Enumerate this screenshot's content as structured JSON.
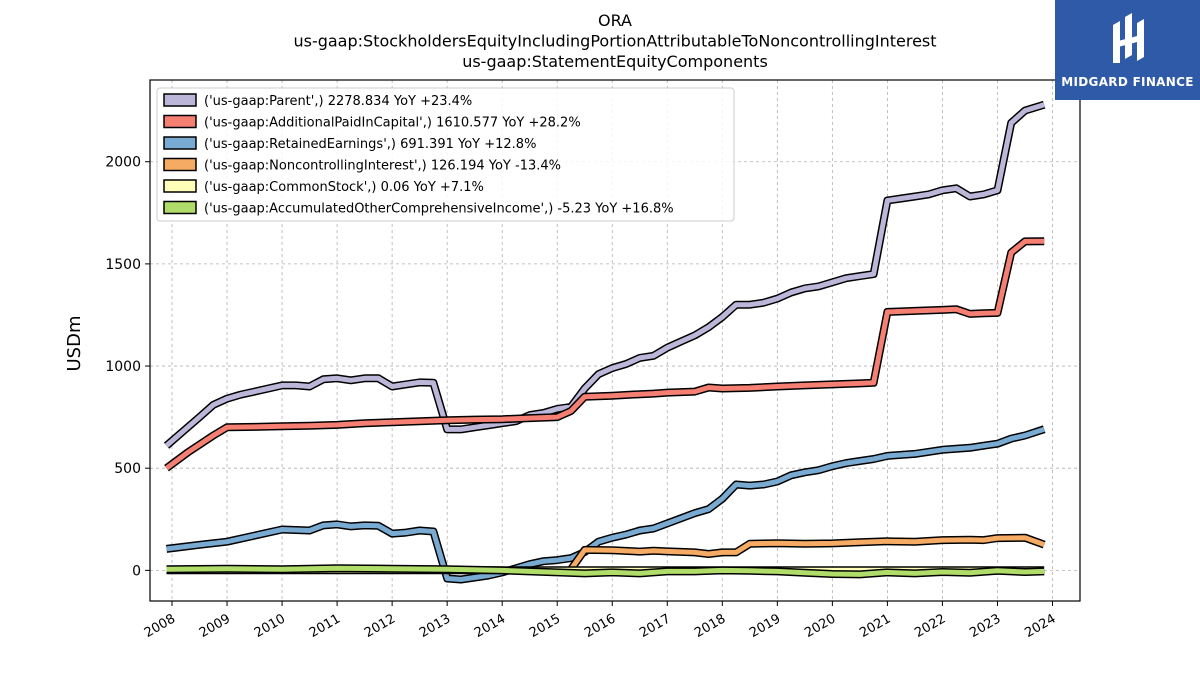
{
  "chart_data": {
    "type": "line",
    "title_lines": [
      "ORA",
      "us-gaap:StockholdersEquityIncludingPortionAttributableToNoncontrollingInterest",
      "us-gaap:StatementEquityComponents"
    ],
    "ylabel": "USDm",
    "xlabel": "",
    "xlim": [
      2007.6,
      2024.5
    ],
    "ylim": [
      -150,
      2400
    ],
    "x_ticks": [
      "2008",
      "2009",
      "2010",
      "2011",
      "2012",
      "2013",
      "2014",
      "2015",
      "2016",
      "2017",
      "2018",
      "2019",
      "2020",
      "2021",
      "2022",
      "2023",
      "2024"
    ],
    "y_ticks": [
      0,
      500,
      1000,
      1500,
      2000
    ],
    "grid": true,
    "legend_position": "top-left",
    "series": [
      {
        "name": "('us-gaap:Parent',) 2278.834 YoY +23.4%",
        "color": "#bcb7d9",
        "points": [
          [
            2007.9,
            610
          ],
          [
            2008.2,
            680
          ],
          [
            2008.5,
            750
          ],
          [
            2008.75,
            810
          ],
          [
            2009.0,
            840
          ],
          [
            2009.25,
            860
          ],
          [
            2009.5,
            875
          ],
          [
            2009.75,
            890
          ],
          [
            2010.0,
            905
          ],
          [
            2010.25,
            905
          ],
          [
            2010.5,
            900
          ],
          [
            2010.75,
            935
          ],
          [
            2011.0,
            940
          ],
          [
            2011.25,
            930
          ],
          [
            2011.5,
            940
          ],
          [
            2011.75,
            940
          ],
          [
            2012.0,
            900
          ],
          [
            2012.25,
            910
          ],
          [
            2012.5,
            920
          ],
          [
            2012.75,
            918
          ],
          [
            2013.0,
            690
          ],
          [
            2013.25,
            690
          ],
          [
            2013.5,
            700
          ],
          [
            2013.75,
            710
          ],
          [
            2014.0,
            720
          ],
          [
            2014.25,
            730
          ],
          [
            2014.5,
            760
          ],
          [
            2014.75,
            770
          ],
          [
            2015.0,
            790
          ],
          [
            2015.25,
            800
          ],
          [
            2015.5,
            890
          ],
          [
            2015.75,
            960
          ],
          [
            2016.0,
            990
          ],
          [
            2016.25,
            1010
          ],
          [
            2016.5,
            1040
          ],
          [
            2016.75,
            1050
          ],
          [
            2017.0,
            1090
          ],
          [
            2017.25,
            1120
          ],
          [
            2017.5,
            1150
          ],
          [
            2017.75,
            1190
          ],
          [
            2018.0,
            1240
          ],
          [
            2018.25,
            1300
          ],
          [
            2018.5,
            1300
          ],
          [
            2018.75,
            1310
          ],
          [
            2019.0,
            1330
          ],
          [
            2019.25,
            1360
          ],
          [
            2019.5,
            1380
          ],
          [
            2019.75,
            1390
          ],
          [
            2020.0,
            1410
          ],
          [
            2020.25,
            1430
          ],
          [
            2020.5,
            1440
          ],
          [
            2020.75,
            1450
          ],
          [
            2021.0,
            1810
          ],
          [
            2021.25,
            1820
          ],
          [
            2021.5,
            1830
          ],
          [
            2021.75,
            1840
          ],
          [
            2022.0,
            1860
          ],
          [
            2022.25,
            1870
          ],
          [
            2022.5,
            1830
          ],
          [
            2022.75,
            1840
          ],
          [
            2023.0,
            1860
          ],
          [
            2023.25,
            2190
          ],
          [
            2023.5,
            2250
          ],
          [
            2023.85,
            2279
          ]
        ]
      },
      {
        "name": "('us-gaap:AdditionalPaidInCapital',) 1610.577 YoY +28.2%",
        "color": "#f47f72",
        "points": [
          [
            2007.9,
            500
          ],
          [
            2008.3,
            580
          ],
          [
            2008.75,
            660
          ],
          [
            2009.0,
            700
          ],
          [
            2009.5,
            702
          ],
          [
            2010.0,
            705
          ],
          [
            2010.5,
            708
          ],
          [
            2011.0,
            712
          ],
          [
            2011.5,
            720
          ],
          [
            2012.0,
            725
          ],
          [
            2012.5,
            730
          ],
          [
            2013.0,
            735
          ],
          [
            2013.5,
            738
          ],
          [
            2014.0,
            740
          ],
          [
            2014.5,
            745
          ],
          [
            2015.0,
            750
          ],
          [
            2015.25,
            780
          ],
          [
            2015.5,
            850
          ],
          [
            2016.0,
            855
          ],
          [
            2016.5,
            862
          ],
          [
            2016.75,
            865
          ],
          [
            2017.0,
            870
          ],
          [
            2017.5,
            875
          ],
          [
            2017.75,
            895
          ],
          [
            2018.0,
            890
          ],
          [
            2018.5,
            893
          ],
          [
            2019.0,
            900
          ],
          [
            2019.5,
            905
          ],
          [
            2020.0,
            910
          ],
          [
            2020.5,
            915
          ],
          [
            2020.75,
            918
          ],
          [
            2021.0,
            1265
          ],
          [
            2021.5,
            1270
          ],
          [
            2022.0,
            1275
          ],
          [
            2022.25,
            1278
          ],
          [
            2022.5,
            1255
          ],
          [
            2022.75,
            1258
          ],
          [
            2023.0,
            1260
          ],
          [
            2023.25,
            1555
          ],
          [
            2023.5,
            1610
          ],
          [
            2023.85,
            1611
          ]
        ]
      },
      {
        "name": "('us-gaap:RetainedEarnings',) 691.391 YoY +12.8%",
        "color": "#79aad2",
        "points": [
          [
            2007.9,
            105
          ],
          [
            2008.5,
            125
          ],
          [
            2009.0,
            140
          ],
          [
            2009.5,
            170
          ],
          [
            2010.0,
            200
          ],
          [
            2010.5,
            195
          ],
          [
            2010.75,
            220
          ],
          [
            2011.0,
            225
          ],
          [
            2011.25,
            215
          ],
          [
            2011.5,
            220
          ],
          [
            2011.75,
            218
          ],
          [
            2012.0,
            180
          ],
          [
            2012.25,
            185
          ],
          [
            2012.5,
            195
          ],
          [
            2012.75,
            190
          ],
          [
            2013.0,
            -40
          ],
          [
            2013.25,
            -45
          ],
          [
            2013.5,
            -35
          ],
          [
            2013.75,
            -25
          ],
          [
            2014.0,
            -10
          ],
          [
            2014.25,
            10
          ],
          [
            2014.5,
            30
          ],
          [
            2014.75,
            45
          ],
          [
            2015.0,
            50
          ],
          [
            2015.25,
            60
          ],
          [
            2015.5,
            90
          ],
          [
            2015.75,
            140
          ],
          [
            2016.0,
            160
          ],
          [
            2016.25,
            175
          ],
          [
            2016.5,
            195
          ],
          [
            2016.75,
            205
          ],
          [
            2017.0,
            230
          ],
          [
            2017.25,
            255
          ],
          [
            2017.5,
            280
          ],
          [
            2017.75,
            300
          ],
          [
            2018.0,
            350
          ],
          [
            2018.25,
            420
          ],
          [
            2018.5,
            415
          ],
          [
            2018.75,
            420
          ],
          [
            2019.0,
            435
          ],
          [
            2019.25,
            465
          ],
          [
            2019.5,
            480
          ],
          [
            2019.75,
            490
          ],
          [
            2020.0,
            510
          ],
          [
            2020.25,
            525
          ],
          [
            2020.5,
            535
          ],
          [
            2020.75,
            545
          ],
          [
            2021.0,
            560
          ],
          [
            2021.5,
            570
          ],
          [
            2022.0,
            590
          ],
          [
            2022.25,
            595
          ],
          [
            2022.5,
            600
          ],
          [
            2022.75,
            610
          ],
          [
            2023.0,
            620
          ],
          [
            2023.25,
            645
          ],
          [
            2023.5,
            660
          ],
          [
            2023.85,
            691
          ]
        ]
      },
      {
        "name": "('us-gaap:NoncontrollingInterest',) 126.194 YoY -13.4%",
        "color": "#f6ab64",
        "points": [
          [
            2015.25,
            5
          ],
          [
            2015.5,
            100
          ],
          [
            2016.0,
            98
          ],
          [
            2016.5,
            92
          ],
          [
            2016.75,
            96
          ],
          [
            2017.0,
            93
          ],
          [
            2017.5,
            88
          ],
          [
            2017.75,
            80
          ],
          [
            2018.0,
            88
          ],
          [
            2018.25,
            88
          ],
          [
            2018.5,
            130
          ],
          [
            2019.0,
            133
          ],
          [
            2019.5,
            130
          ],
          [
            2020.0,
            132
          ],
          [
            2020.5,
            138
          ],
          [
            2021.0,
            142
          ],
          [
            2021.5,
            140
          ],
          [
            2022.0,
            148
          ],
          [
            2022.5,
            150
          ],
          [
            2022.75,
            148
          ],
          [
            2023.0,
            158
          ],
          [
            2023.5,
            160
          ],
          [
            2023.85,
            126
          ]
        ]
      },
      {
        "name": "('us-gaap:CommonStock',) 0.06 YoY +7.1%",
        "color": "#ffffb8",
        "points": [
          [
            2007.9,
            0.05
          ],
          [
            2023.85,
            0.06
          ]
        ]
      },
      {
        "name": "('us-gaap:AccumulatedOtherComprehensiveIncome',) -5.23 YoY +16.8%",
        "color": "#b0dd6a",
        "points": [
          [
            2007.9,
            5
          ],
          [
            2009.0,
            8
          ],
          [
            2010.0,
            5
          ],
          [
            2011.0,
            10
          ],
          [
            2012.0,
            8
          ],
          [
            2013.0,
            5
          ],
          [
            2014.0,
            0
          ],
          [
            2015.0,
            -10
          ],
          [
            2015.5,
            -15
          ],
          [
            2016.0,
            -10
          ],
          [
            2016.5,
            -15
          ],
          [
            2017.0,
            -5
          ],
          [
            2017.5,
            -5
          ],
          [
            2018.0,
            0
          ],
          [
            2018.5,
            -2
          ],
          [
            2019.0,
            -5
          ],
          [
            2019.5,
            -12
          ],
          [
            2020.0,
            -18
          ],
          [
            2020.5,
            -20
          ],
          [
            2021.0,
            -10
          ],
          [
            2021.5,
            -15
          ],
          [
            2022.0,
            -8
          ],
          [
            2022.5,
            -12
          ],
          [
            2023.0,
            -2
          ],
          [
            2023.5,
            -8
          ],
          [
            2023.85,
            -5.23
          ]
        ]
      }
    ]
  },
  "logo": {
    "brand": "MIDGARD FINANCE"
  }
}
